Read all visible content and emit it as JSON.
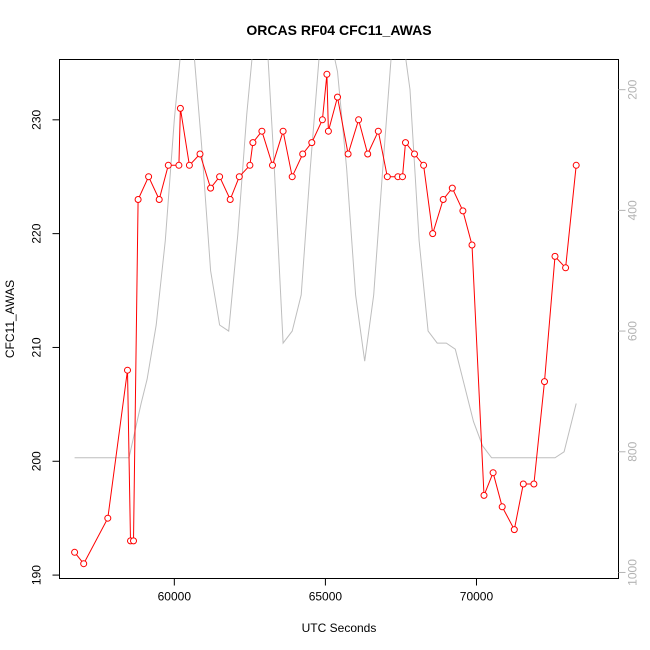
{
  "chart_data": {
    "type": "line",
    "title": "ORCAS RF04 CFC11_AWAS",
    "xlabel": "UTC Seconds",
    "ylabel": "CFC11_AWAS",
    "xlim": [
      56200,
      74700
    ],
    "ylim": [
      189.7,
      235.3
    ],
    "x_ticks": [
      60000,
      65000,
      70000
    ],
    "y_ticks": [
      190,
      200,
      210,
      220,
      230
    ],
    "y2lim": [
      1010,
      150
    ],
    "y2_ticks": [
      200,
      400,
      600,
      800,
      1000
    ],
    "grid": false,
    "legend": "none",
    "colors": {
      "series": "#ff0000",
      "secondary": "#bebebe"
    },
    "series": [
      {
        "marker": "open-circle",
        "axis": "left",
        "x": [
          56700,
          57000,
          57800,
          58450,
          58550,
          58650,
          58800,
          59150,
          59500,
          59800,
          60150,
          60200,
          60500,
          60850,
          61200,
          61500,
          61850,
          62150,
          62500,
          62600,
          62900,
          63250,
          63600,
          63900,
          64250,
          64550,
          64900,
          65050,
          65100,
          65400,
          65750,
          66100,
          66400,
          66750,
          67050,
          67400,
          67550,
          67650,
          67950,
          68250,
          68550,
          68900,
          69200,
          69550,
          69850,
          70250,
          70550,
          70850,
          71250,
          71550,
          71900,
          72250,
          72600,
          72950,
          73300
        ],
        "y": [
          192,
          191,
          195,
          208,
          193,
          193,
          223,
          225,
          223,
          226,
          226,
          231,
          226,
          227,
          224,
          225,
          223,
          225,
          226,
          228,
          229,
          226,
          229,
          225,
          227,
          228,
          230,
          234,
          229,
          232,
          227,
          230,
          227,
          229,
          225,
          225,
          225,
          228,
          227,
          226,
          220,
          223,
          224,
          222,
          219,
          197,
          199,
          196,
          194,
          198,
          198,
          207,
          218,
          217,
          226
        ]
      },
      {
        "axis": "right",
        "x": [
          56700,
          58500,
          58900,
          59100,
          59400,
          59700,
          60000,
          60300,
          60600,
          60900,
          61200,
          61500,
          61800,
          62100,
          62400,
          62700,
          63000,
          63300,
          63600,
          63900,
          64200,
          64500,
          64800,
          65100,
          65400,
          65700,
          66000,
          66300,
          66600,
          66900,
          67200,
          67500,
          67800,
          68100,
          68400,
          68700,
          69000,
          69300,
          69600,
          69900,
          70200,
          70500,
          70800,
          71100,
          71400,
          71700,
          72000,
          72300,
          72600,
          72900,
          73300
        ],
        "y": [
          810,
          810,
          720,
          680,
          590,
          450,
          250,
          90,
          110,
          290,
          500,
          590,
          600,
          440,
          240,
          80,
          60,
          320,
          620,
          600,
          540,
          330,
          140,
          100,
          170,
          330,
          540,
          650,
          540,
          330,
          130,
          90,
          200,
          450,
          600,
          620,
          620,
          630,
          690,
          750,
          790,
          810,
          810,
          810,
          810,
          810,
          810,
          810,
          810,
          800,
          720
        ]
      }
    ]
  }
}
